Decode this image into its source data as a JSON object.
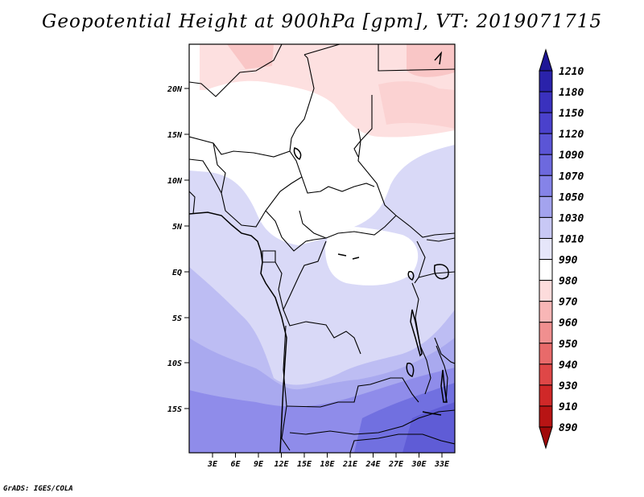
{
  "title": "Geopotential Height at 900hPa [gpm], VT: 2019071715",
  "credit": "GrADS: IGES/COLA",
  "map": {
    "lat_labels": [
      "20N",
      "15N",
      "10N",
      "5N",
      "EQ",
      "5S",
      "10S",
      "15S"
    ],
    "lon_labels": [
      "3E",
      "6E",
      "9E",
      "12E",
      "15E",
      "18E",
      "21E",
      "24E",
      "27E",
      "30E",
      "33E"
    ]
  },
  "colorbar": {
    "labels": [
      "1210",
      "1180",
      "1150",
      "1120",
      "1090",
      "1070",
      "1050",
      "1030",
      "1010",
      "990",
      "980",
      "970",
      "960",
      "950",
      "940",
      "930",
      "910",
      "890"
    ],
    "colors": [
      "#1e1696",
      "#2a22aa",
      "#3a31be",
      "#4a41cc",
      "#5b55d6",
      "#6d69de",
      "#8583e8",
      "#a3a3ee",
      "#c8c8f5",
      "#e6e6fa",
      "#ffffff",
      "#fddcdc",
      "#f8b6b6",
      "#f08f8f",
      "#e86a6a",
      "#df4747",
      "#d02828",
      "#b81414",
      "#a00a0a"
    ]
  }
}
